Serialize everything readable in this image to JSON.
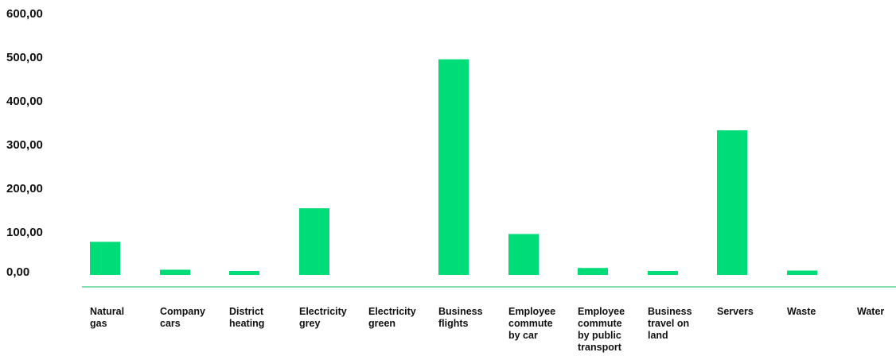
{
  "chart_data": {
    "type": "bar",
    "categories": [
      "Natural\ngas",
      "Company\ncars",
      "District\nheating",
      "Electricity\ngrey",
      "Electricity\ngreen",
      "Business\nflights",
      "Employee\ncommute\nby car",
      "Employee\ncommute\nby public\ntransport",
      "Business\ntravel on\nland",
      "Servers",
      "Waste",
      "Water"
    ],
    "values": [
      76,
      12,
      6,
      153,
      0,
      495,
      94,
      16,
      6,
      332,
      10,
      0
    ],
    "ylim": [
      0,
      600
    ],
    "yticks": [
      "0,00",
      "100,00",
      "200,00",
      "300,00",
      "400,00",
      "500,00",
      "600,00"
    ],
    "bar_color": "#00dc78",
    "axis_color": "#39c97f",
    "grid": false
  }
}
